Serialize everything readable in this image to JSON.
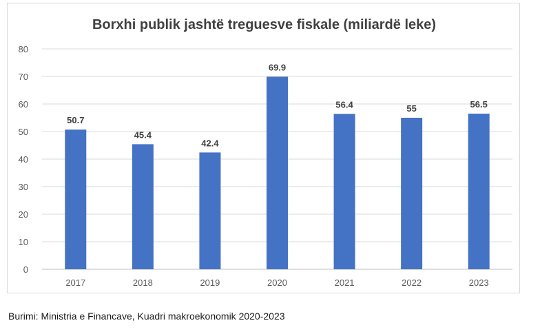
{
  "chart_data": {
    "type": "bar",
    "title": "Borxhi publik jashtë treguesve fiskale (miliardë leke)",
    "categories": [
      "2017",
      "2018",
      "2019",
      "2020",
      "2021",
      "2022",
      "2023"
    ],
    "values": [
      50.7,
      45.4,
      42.4,
      69.9,
      56.4,
      55,
      56.5
    ],
    "data_labels": [
      "50.7",
      "45.4",
      "42.4",
      "69.9",
      "56.4",
      "55",
      "56.5"
    ],
    "xlabel": "",
    "ylabel": "",
    "ylim": [
      0,
      80
    ],
    "yticks": [
      "0",
      "10",
      "20",
      "30",
      "40",
      "50",
      "60",
      "70",
      "80"
    ],
    "grid": true,
    "legend": "none",
    "bar_color": "#4472c4"
  },
  "source": "Burimi: Ministria e Financave, Kuadri makroekonomik 2020-2023"
}
